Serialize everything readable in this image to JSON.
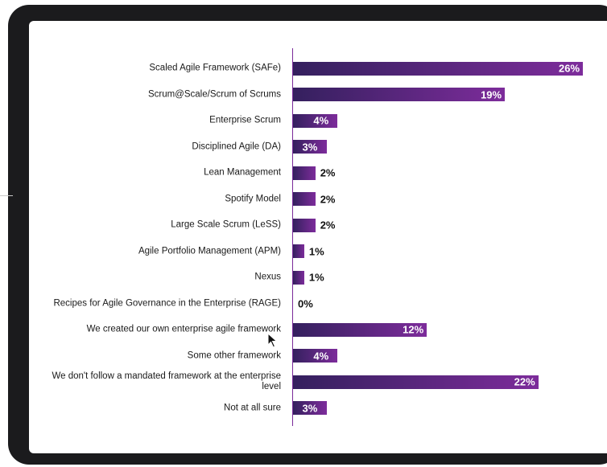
{
  "chart_data": {
    "type": "bar",
    "orientation": "horizontal",
    "categories": [
      "Scaled Agile Framework (SAFe)",
      "Scrum@Scale/Scrum of Scrums",
      "Enterprise Scrum",
      "Disciplined Agile (DA)",
      "Lean Management",
      "Spotify Model",
      "Large Scale Scrum (LeSS)",
      "Agile Portfolio Management (APM)",
      "Nexus",
      "Recipes for Agile Governance in the Enterprise (RAGE)",
      "We created our own enterprise agile framework",
      "Some other framework",
      "We don't follow a mandated framework at the enterprise level",
      "Not at all sure"
    ],
    "values": [
      26,
      19,
      4,
      3,
      2,
      2,
      2,
      1,
      1,
      0,
      12,
      4,
      22,
      3
    ],
    "value_labels": [
      "26%",
      "19%",
      "4%",
      "3%",
      "2%",
      "2%",
      "2%",
      "1%",
      "1%",
      "0%",
      "12%",
      "4%",
      "22%",
      "3%"
    ],
    "title": "",
    "xlabel": "",
    "ylabel": "",
    "colors": {
      "bar_start": "#34205e",
      "bar_end": "#7d2c9b",
      "axis": "#7a2a9a"
    }
  },
  "icons": {
    "cursor": "mouse-pointer-icon"
  }
}
